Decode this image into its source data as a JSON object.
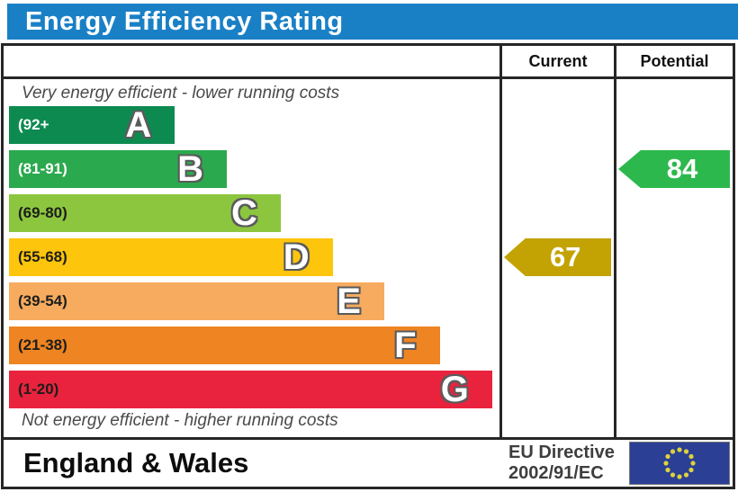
{
  "title": "Energy Efficiency Rating",
  "header": {
    "current": "Current",
    "potential": "Potential"
  },
  "notes": {
    "top": "Very energy efficient - lower running costs",
    "bottom": "Not energy efficient - higher running costs"
  },
  "bands": [
    {
      "letter": "A",
      "range": "(92+",
      "color": "#0d8a50",
      "label_color": "#ffffff",
      "width_pct": 33.8
    },
    {
      "letter": "B",
      "range": "(81-91)",
      "color": "#2ba94e",
      "label_color": "#ffffff",
      "width_pct": 44.4
    },
    {
      "letter": "C",
      "range": "(69-80)",
      "color": "#8cc63f",
      "label_color": "#1d1d1b",
      "width_pct": 55.4
    },
    {
      "letter": "D",
      "range": "(55-68)",
      "color": "#fdc50c",
      "label_color": "#1d1d1b",
      "width_pct": 66.0
    },
    {
      "letter": "E",
      "range": "(39-54)",
      "color": "#f6ab5f",
      "label_color": "#1d1d1b",
      "width_pct": 76.5
    },
    {
      "letter": "F",
      "range": "(21-38)",
      "color": "#ee8422",
      "label_color": "#1d1d1b",
      "width_pct": 87.8
    },
    {
      "letter": "G",
      "range": "(1-20)",
      "color": "#e9233d",
      "label_color": "#1d1d1b",
      "width_pct": 98.5
    }
  ],
  "current": {
    "value": "67",
    "band_index": 3,
    "color": "#c3a204"
  },
  "potential": {
    "value": "84",
    "band_index": 1,
    "color": "#2db84d"
  },
  "footer": {
    "region": "England & Wales",
    "directive_line1": "EU Directive",
    "directive_line2": "2002/91/EC",
    "flag_icon": "eu-flag"
  },
  "colors": {
    "title_bar_bg": "#1a80c6",
    "flag_bg": "#2b3f95",
    "flag_stars": "#ddd23c",
    "border": "#262626"
  },
  "chart_data": {
    "type": "bar",
    "title": "Energy Efficiency Rating",
    "categories": [
      "A",
      "B",
      "C",
      "D",
      "E",
      "F",
      "G"
    ],
    "band_ranges": [
      "92+",
      "81-91",
      "69-80",
      "55-68",
      "39-54",
      "21-38",
      "1-20"
    ],
    "band_colors": [
      "#0d8a50",
      "#2ba94e",
      "#8cc63f",
      "#fdc50c",
      "#f6ab5f",
      "#ee8422",
      "#e9233d"
    ],
    "bar_width_pct": [
      33.8,
      44.4,
      55.4,
      66.0,
      76.5,
      87.8,
      98.5
    ],
    "series": [
      {
        "name": "Current",
        "value": 67,
        "band": "D"
      },
      {
        "name": "Potential",
        "value": 84,
        "band": "B"
      }
    ],
    "annotations": [
      "Very energy efficient - lower running costs",
      "Not energy efficient - higher running costs"
    ],
    "xlabel": "",
    "ylabel": "",
    "legend_position": "column-headers",
    "grid": false
  }
}
